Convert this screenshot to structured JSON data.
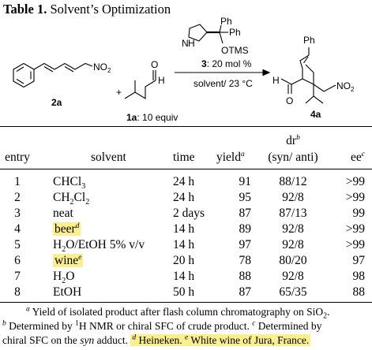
{
  "title": {
    "prefix": "Table 1.",
    "text": " Solvent’s Optimization"
  },
  "scheme": {
    "substrate_label": "2a",
    "aldehyde_label": "1a",
    "aldehyde_equiv": ": 10 equiv",
    "catalyst_num": "3",
    "catalyst_loading": ": 20 mol %",
    "conditions": "solvent/ 23 °C",
    "product_label": "4a",
    "atoms": {
      "no2": "NO",
      "no2_sub": "2",
      "o": "O",
      "h": "H",
      "ph": "Ph",
      "otms": "OTMS",
      "n": "N",
      "nh_h": "H"
    }
  },
  "table": {
    "headers": {
      "entry": "entry",
      "solvent": "solvent",
      "time": "time",
      "yield": "yield",
      "yield_sup": "a",
      "dr": "dr",
      "dr_sup": "b",
      "dr_sub": "(syn/ anti)",
      "ee": "ee",
      "ee_sup": "c"
    },
    "rows": [
      {
        "entry": "1",
        "solvent_a": "CHCl",
        "solvent_sub": "3",
        "time": "24 h",
        "yield": "91",
        "dr": "88/12",
        "ee": ">99"
      },
      {
        "entry": "2",
        "solvent_a": "CH",
        "solvent_sub": "2",
        "solvent_b": "Cl",
        "solvent_sub2": "2",
        "time": "24 h",
        "yield": "95",
        "dr": "92/8",
        "ee": ">99"
      },
      {
        "entry": "3",
        "solvent_a": "neat",
        "time": "2 days",
        "yield": "87",
        "dr": "87/13",
        "ee": "99"
      },
      {
        "entry": "4",
        "solvent_a": "beer",
        "solvent_sup": "d",
        "time": "14 h",
        "yield": "89",
        "dr": "92/8",
        "ee": ">99"
      },
      {
        "entry": "5",
        "solvent_a": "H",
        "solvent_sub": "2",
        "solvent_b": "O/EtOH 5% v/v",
        "time": "14 h",
        "yield": "97",
        "dr": "92/8",
        "ee": ">99"
      },
      {
        "entry": "6",
        "solvent_a": "wine",
        "solvent_sup": "e",
        "time": "20 h",
        "yield": "78",
        "dr": "80/20",
        "ee": "97"
      },
      {
        "entry": "7",
        "solvent_a": "H",
        "solvent_sub": "2",
        "solvent_b": "O",
        "time": "14 h",
        "yield": "88",
        "dr": "92/8",
        "ee": "98"
      },
      {
        "entry": "8",
        "solvent_a": "EtOH",
        "time": "50 h",
        "yield": "87",
        "dr": "65/35",
        "ee": "88"
      }
    ]
  },
  "footnotes": {
    "a_mark": "a",
    "a_text": " Yield of isolated product after flash column chromatography on SiO",
    "a_sub": "2",
    "a_end": ".",
    "b_mark": "b",
    "b_text1": " Determined by ",
    "b_iso": "1",
    "b_text2": "H NMR or chiral SFC of crude product. ",
    "c_mark": "c",
    "c_text1": " Determined by",
    "c_text2": "chiral SFC on the ",
    "c_syn": "syn",
    "c_text3": " adduct. ",
    "d_mark": "d",
    "d_text": "Heineken. ",
    "e_mark": "e",
    "e_text": " White wine of Jura, France."
  }
}
